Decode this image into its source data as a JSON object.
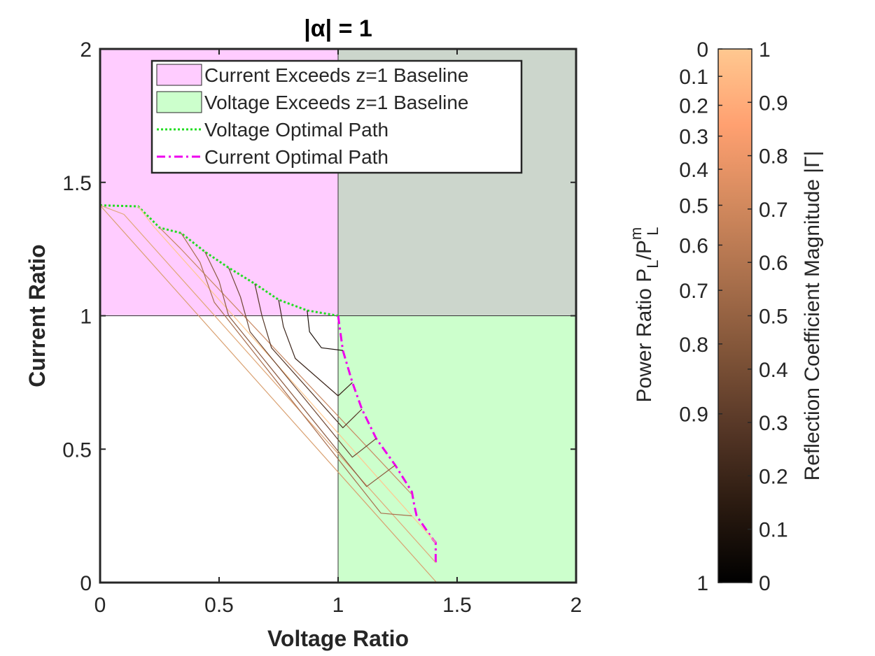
{
  "chart_data": {
    "type": "line",
    "title": "|α| = 1",
    "xlabel": "Voltage Ratio",
    "ylabel": "Current Ratio",
    "xlim": [
      0,
      2
    ],
    "ylim": [
      0,
      2
    ],
    "xticks": [
      "0",
      "0.5",
      "1",
      "1.5",
      "2"
    ],
    "yticks": [
      "0",
      "0.5",
      "1",
      "1.5",
      "2"
    ],
    "grid": false,
    "legend_position": "top",
    "regions": [
      {
        "name": "Current Exceeds z=1 Baseline",
        "x": [
          0,
          1
        ],
        "y": [
          1,
          2
        ],
        "color": "#ffccff"
      },
      {
        "name": "Voltage Exceeds z=1 Baseline",
        "x": [
          1,
          2
        ],
        "y": [
          0,
          1
        ],
        "color": "#ccffcc"
      },
      {
        "name": "",
        "x": [
          1,
          2
        ],
        "y": [
          1,
          2
        ],
        "color": "#ccd6cc"
      }
    ],
    "series": [
      {
        "name": "Voltage Optimal Path",
        "color": "#22dd22",
        "style": "dotted",
        "x": [
          0,
          0.16,
          0.25,
          0.34,
          0.44,
          0.54,
          0.65,
          0.75,
          0.87,
          1.0
        ],
        "y": [
          1.414,
          1.41,
          1.33,
          1.31,
          1.24,
          1.18,
          1.12,
          1.06,
          1.02,
          1.0
        ]
      },
      {
        "name": "Current Optimal Path",
        "color": "#ee00ee",
        "style": "dashdot",
        "x": [
          1.0,
          1.02,
          1.06,
          1.1,
          1.16,
          1.24,
          1.31,
          1.32,
          1.33,
          1.4,
          1.41,
          1.41
        ],
        "y": [
          1.0,
          0.87,
          0.75,
          0.65,
          0.54,
          0.44,
          0.34,
          0.29,
          0.25,
          0.16,
          0.15,
          0.075
        ]
      },
      {
        "name": "",
        "color": "#d9a070",
        "x": [
          0,
          1.414
        ],
        "y": [
          1.414,
          0
        ]
      },
      {
        "name": "",
        "color": "#e0a878",
        "x": [
          0,
          0.1,
          1.41
        ],
        "y": [
          1.414,
          1.38,
          0.075
        ]
      },
      {
        "name": "",
        "color": "#ffc890",
        "x": [
          0.16,
          0.22,
          1.41
        ],
        "y": [
          1.41,
          1.34,
          0.15
        ]
      },
      {
        "name": "",
        "color": "#c88862",
        "x": [
          0.25,
          0.34,
          1.31
        ],
        "y": [
          1.33,
          1.25,
          0.33
        ]
      },
      {
        "name": "",
        "color": "#a86e4e",
        "x": [
          0.34,
          0.42,
          0.48,
          1.18,
          1.31
        ],
        "y": [
          1.31,
          1.2,
          1.05,
          0.26,
          0.25
        ]
      },
      {
        "name": "",
        "color": "#8c5a40",
        "x": [
          0.44,
          0.5,
          0.54,
          1.12,
          1.24
        ],
        "y": [
          1.24,
          1.13,
          1.0,
          0.36,
          0.44
        ]
      },
      {
        "name": "",
        "color": "#6e4632",
        "x": [
          0.54,
          0.59,
          0.63,
          1.06,
          1.16
        ],
        "y": [
          1.18,
          1.07,
          0.94,
          0.47,
          0.54
        ]
      },
      {
        "name": "",
        "color": "#553626",
        "x": [
          0.65,
          0.68,
          0.72,
          1.02,
          1.1
        ],
        "y": [
          1.12,
          1.0,
          0.88,
          0.58,
          0.65
        ]
      },
      {
        "name": "",
        "color": "#3a241a",
        "x": [
          0.75,
          0.77,
          0.82,
          1.0,
          1.06
        ],
        "y": [
          1.06,
          0.96,
          0.84,
          0.7,
          0.75
        ]
      },
      {
        "name": "",
        "color": "#1c120c",
        "x": [
          0.87,
          0.88,
          0.93,
          1.02
        ],
        "y": [
          1.02,
          0.94,
          0.88,
          0.87
        ]
      }
    ],
    "colorbar": {
      "label": "Reflection Coefficient Magnitude |Γ|",
      "range": [
        0,
        1
      ],
      "ticks": [
        "0",
        "0.1",
        "0.2",
        "0.3",
        "0.4",
        "0.5",
        "0.6",
        "0.7",
        "0.8",
        "0.9",
        "1"
      ],
      "colors": [
        "#000000",
        "#2a1a10",
        "#553626",
        "#805438",
        "#aa704c",
        "#d48a5e",
        "#ffa070",
        "#ffc890"
      ],
      "left_label": "Power Ratio P_L/P_L^m",
      "left_ticks": [
        "1",
        "0.9",
        "0.8",
        "0.7",
        "0.6",
        "0.5",
        "0.4",
        "0.3",
        "0.2",
        "0.1",
        "0"
      ],
      "left_values": [
        1,
        0.9,
        0.8,
        0.7,
        0.6,
        0.5,
        0.4,
        0.3,
        0.2,
        0.1,
        0
      ]
    }
  }
}
